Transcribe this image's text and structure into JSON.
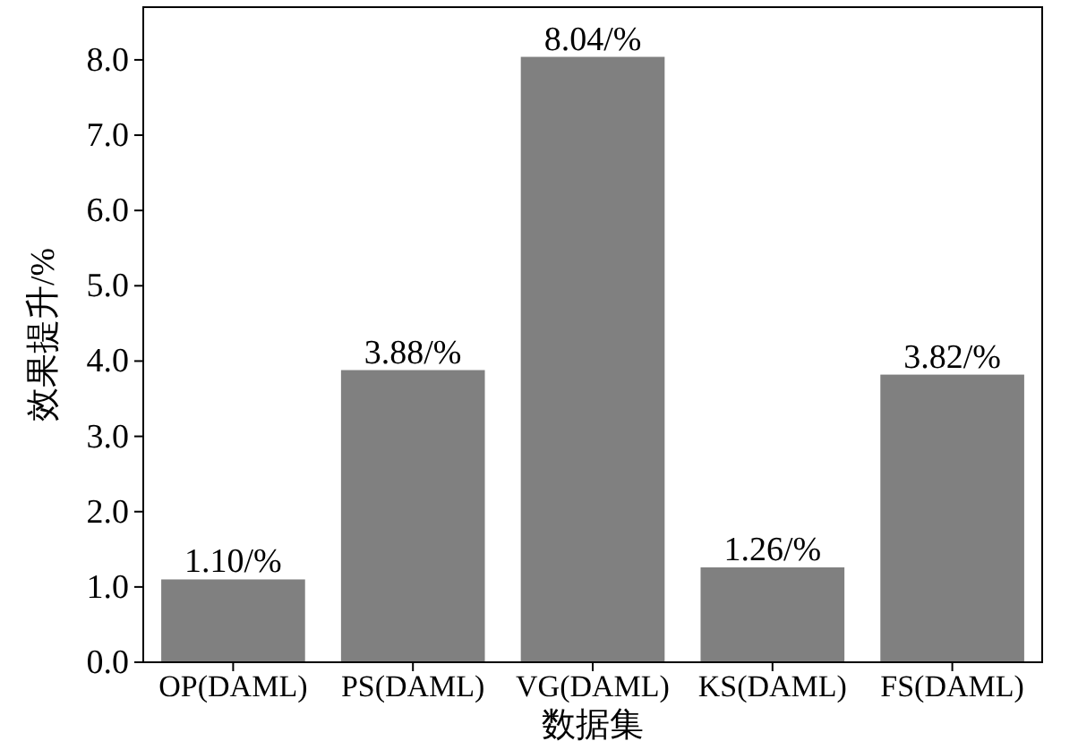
{
  "chart_data": {
    "type": "bar",
    "xlabel": "数据集",
    "ylabel": "效果提升/%",
    "categories": [
      "OP(DAML)",
      "PS(DAML)",
      "VG(DAML)",
      "KS(DAML)",
      "FS(DAML)"
    ],
    "values": [
      1.1,
      3.88,
      8.04,
      1.26,
      3.82
    ],
    "color": "#808080",
    "value_labels": [
      "1.10/%",
      "3.88/%",
      "8.04/%",
      "1.26/%",
      "3.82/%"
    ],
    "ylim": [
      0,
      8.7
    ],
    "yticks": [
      {
        "value": 0,
        "label": "0.0"
      },
      {
        "value": 1,
        "label": "1.0"
      },
      {
        "value": 2,
        "label": "2.0"
      },
      {
        "value": 3,
        "label": "3.0"
      },
      {
        "value": 4,
        "label": "4.0"
      },
      {
        "value": 5,
        "label": "5.0"
      },
      {
        "value": 6,
        "label": "6.0"
      },
      {
        "value": 7,
        "label": "7.0"
      },
      {
        "value": 8,
        "label": "8.0"
      }
    ],
    "grid": false
  }
}
